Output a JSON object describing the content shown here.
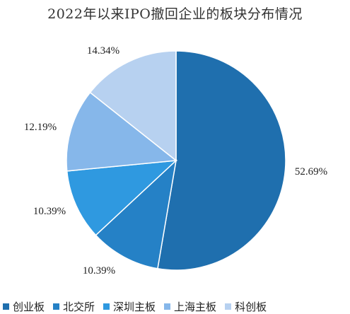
{
  "chart_data": {
    "type": "pie",
    "title": "2022年以来IPO撤回企业的板块分布情况",
    "categories": [
      "创业板",
      "北交所",
      "深圳主板",
      "上海主板",
      "科创板"
    ],
    "values": [
      52.69,
      10.39,
      10.39,
      12.19,
      14.34
    ],
    "value_labels": [
      "52.69%",
      "10.39%",
      "10.39%",
      "12.19%",
      "14.34%"
    ],
    "colors": [
      "#1F6FAE",
      "#2581C6",
      "#2F99E0",
      "#86B7EA",
      "#B7D1F0"
    ],
    "legend_position": "bottom",
    "start_angle": "12 o'clock",
    "direction": "clockwise"
  }
}
